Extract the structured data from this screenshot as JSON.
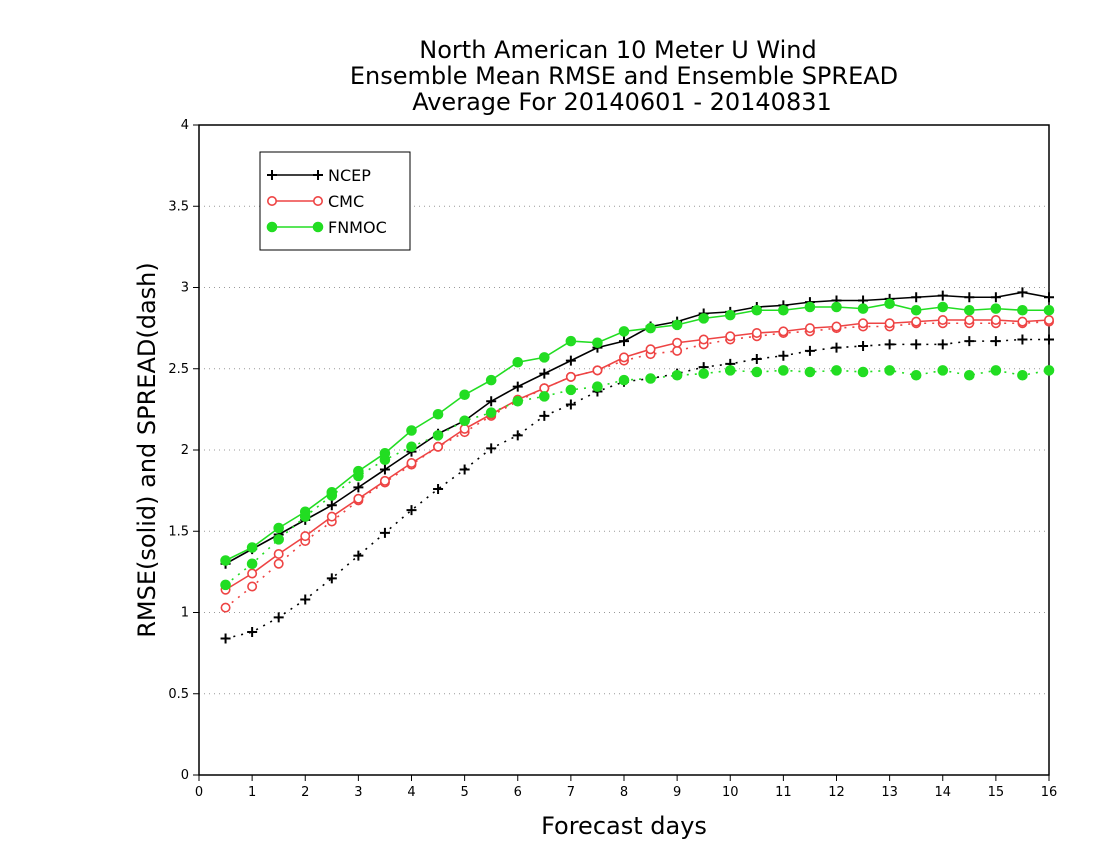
{
  "chart_data": {
    "type": "line",
    "title_lines": [
      "North American 10 Meter U Wind",
      "Ensemble Mean RMSE and Ensemble SPREAD",
      "Average For 20140601 - 20140831"
    ],
    "xlabel": "Forecast days",
    "ylabel": "RMSE(solid) and SPREAD(dash)",
    "xlim": [
      0,
      16
    ],
    "ylim": [
      0,
      4
    ],
    "x_ticks": [
      0,
      1,
      2,
      3,
      4,
      5,
      6,
      7,
      8,
      9,
      10,
      11,
      12,
      13,
      14,
      15,
      16
    ],
    "y_ticks": [
      0,
      0.5,
      1,
      1.5,
      2,
      2.5,
      3,
      3.5,
      4
    ],
    "y_tick_labels": [
      "0",
      "0.5",
      "1",
      "1.5",
      "2",
      "2.5",
      "3",
      "3.5",
      "4"
    ],
    "grid": "horizontal dotted",
    "legend_position": "top-left",
    "x": [
      0.5,
      1,
      1.5,
      2,
      2.5,
      3,
      3.5,
      4,
      4.5,
      5,
      5.5,
      6,
      6.5,
      7,
      7.5,
      8,
      8.5,
      9,
      9.5,
      10,
      10.5,
      11,
      11.5,
      12,
      12.5,
      13,
      13.5,
      14,
      14.5,
      15,
      15.5,
      16
    ],
    "series": [
      {
        "name": "NCEP",
        "color": "#000000",
        "marker": "plus",
        "rmse": [
          1.3,
          1.39,
          1.48,
          1.57,
          1.66,
          1.77,
          1.88,
          1.99,
          2.1,
          2.18,
          2.3,
          2.39,
          2.47,
          2.55,
          2.63,
          2.67,
          2.76,
          2.79,
          2.84,
          2.85,
          2.88,
          2.89,
          2.91,
          2.92,
          2.92,
          2.93,
          2.94,
          2.95,
          2.94,
          2.94,
          2.97,
          2.94
        ],
        "spread": [
          0.84,
          0.88,
          0.97,
          1.08,
          1.21,
          1.35,
          1.49,
          1.63,
          1.76,
          1.88,
          2.01,
          2.09,
          2.21,
          2.28,
          2.36,
          2.42,
          2.44,
          2.47,
          2.51,
          2.53,
          2.56,
          2.58,
          2.61,
          2.63,
          2.64,
          2.65,
          2.65,
          2.65,
          2.67,
          2.67,
          2.68,
          2.68
        ]
      },
      {
        "name": "CMC",
        "color": "#ee4444",
        "marker": "circle-open",
        "rmse": [
          1.14,
          1.24,
          1.36,
          1.47,
          1.59,
          1.7,
          1.81,
          1.92,
          2.02,
          2.13,
          2.22,
          2.31,
          2.38,
          2.45,
          2.49,
          2.57,
          2.62,
          2.66,
          2.68,
          2.7,
          2.72,
          2.73,
          2.75,
          2.76,
          2.78,
          2.78,
          2.79,
          2.8,
          2.8,
          2.8,
          2.79,
          2.8
        ],
        "spread": [
          1.03,
          1.16,
          1.3,
          1.44,
          1.56,
          1.69,
          1.8,
          1.91,
          2.02,
          2.11,
          2.21,
          2.3,
          2.38,
          2.45,
          2.49,
          2.55,
          2.59,
          2.61,
          2.65,
          2.68,
          2.7,
          2.72,
          2.73,
          2.75,
          2.76,
          2.76,
          2.78,
          2.78,
          2.78,
          2.78,
          2.78,
          2.79
        ]
      },
      {
        "name": "FNMOC",
        "color": "#22dd22",
        "marker": "circle-filled",
        "rmse": [
          1.32,
          1.4,
          1.52,
          1.62,
          1.74,
          1.87,
          1.98,
          2.12,
          2.22,
          2.34,
          2.43,
          2.54,
          2.57,
          2.67,
          2.66,
          2.73,
          2.75,
          2.77,
          2.81,
          2.83,
          2.86,
          2.86,
          2.88,
          2.88,
          2.87,
          2.9,
          2.86,
          2.88,
          2.86,
          2.87,
          2.86,
          2.86
        ],
        "spread": [
          1.17,
          1.3,
          1.45,
          1.59,
          1.72,
          1.84,
          1.94,
          2.02,
          2.09,
          2.18,
          2.23,
          2.3,
          2.33,
          2.37,
          2.39,
          2.43,
          2.44,
          2.46,
          2.47,
          2.49,
          2.48,
          2.49,
          2.48,
          2.49,
          2.48,
          2.49,
          2.46,
          2.49,
          2.46,
          2.49,
          2.46,
          2.49
        ]
      }
    ]
  }
}
